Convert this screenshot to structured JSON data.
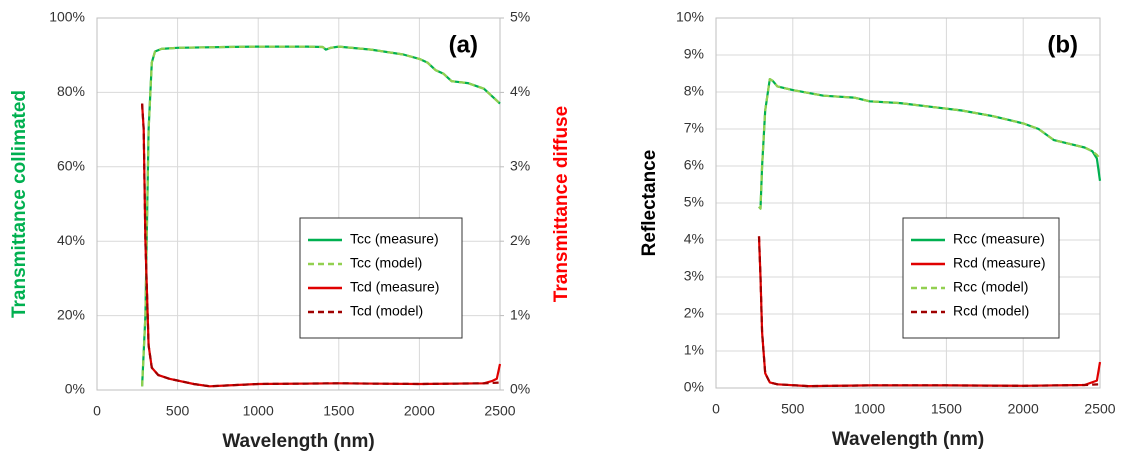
{
  "chart_data": [
    {
      "type": "line",
      "annotation": "(a)",
      "x_label": "Wavelength (nm)",
      "y_label": "Transmittance collimated",
      "y_label_color": "#00b050",
      "y2_label": "Transmittance diffuse",
      "y2_label_color": "#ff0000",
      "grid": true,
      "xlim": [
        0,
        2500
      ],
      "xticks": [
        0,
        500,
        1000,
        1500,
        2000,
        2500
      ],
      "ylim": [
        0,
        100
      ],
      "yticks": [
        {
          "value": 0,
          "label": "0%"
        },
        {
          "value": 20,
          "label": "20%"
        },
        {
          "value": 40,
          "label": "40%"
        },
        {
          "value": 60,
          "label": "60%"
        },
        {
          "value": 80,
          "label": "80%"
        },
        {
          "value": 100,
          "label": "100%"
        }
      ],
      "y2lim": [
        0,
        5
      ],
      "y2ticks": [
        {
          "value": 0,
          "label": "0%"
        },
        {
          "value": 1,
          "label": "1%"
        },
        {
          "value": 2,
          "label": "2%"
        },
        {
          "value": 3,
          "label": "3%"
        },
        {
          "value": 4,
          "label": "4%"
        },
        {
          "value": 5,
          "label": "5%"
        }
      ],
      "series": [
        {
          "name": "Tcc (measure)",
          "color": "#00b050",
          "dashed": false,
          "x": [
            280,
            300,
            320,
            340,
            360,
            400,
            500,
            800,
            1000,
            1300,
            1400,
            1420,
            1450,
            1500,
            1700,
            1900,
            2000,
            2050,
            2100,
            2150,
            2200,
            2300,
            2400,
            2500
          ],
          "values": [
            1,
            20,
            70,
            88,
            91,
            91.7,
            92,
            92.2,
            92.3,
            92.3,
            92.2,
            91.5,
            92,
            92.3,
            91.5,
            90.2,
            89,
            88,
            86,
            85,
            83,
            82.5,
            81,
            77
          ]
        },
        {
          "name": "Tcc (model)",
          "color": "#92d050",
          "dashed": true,
          "x": [
            280,
            300,
            320,
            340,
            360,
            400,
            500,
            800,
            1000,
            1300,
            1400,
            1420,
            1450,
            1500,
            1700,
            1900,
            2000,
            2050,
            2100,
            2150,
            2200,
            2300,
            2400,
            2500
          ],
          "values": [
            1,
            20,
            70,
            88,
            91,
            91.7,
            92,
            92.2,
            92.3,
            92.3,
            92.2,
            91.5,
            92,
            92.3,
            91.5,
            90.2,
            89,
            88,
            86,
            85,
            83,
            82.5,
            81,
            77
          ]
        },
        {
          "name": "Tcd (measure)",
          "color": "#e00000",
          "dashed": false,
          "axis": "y2",
          "x": [
            280,
            290,
            300,
            320,
            340,
            380,
            450,
            600,
            700,
            800,
            1000,
            1500,
            2000,
            2400,
            2450,
            2480,
            2500
          ],
          "values": [
            3.85,
            3.5,
            2,
            0.6,
            0.3,
            0.2,
            0.15,
            0.08,
            0.05,
            0.06,
            0.08,
            0.09,
            0.08,
            0.09,
            0.12,
            0.15,
            0.35
          ]
        },
        {
          "name": "Tcd (model)",
          "color": "#a00000",
          "dashed": true,
          "axis": "y2",
          "x": [
            280,
            290,
            300,
            320,
            340,
            380,
            450,
            600,
            700,
            800,
            1000,
            1500,
            2000,
            2400,
            2500
          ],
          "values": [
            3.85,
            3.5,
            2,
            0.6,
            0.3,
            0.2,
            0.15,
            0.08,
            0.05,
            0.06,
            0.08,
            0.09,
            0.08,
            0.09,
            0.1
          ]
        }
      ]
    },
    {
      "type": "line",
      "annotation": "(b)",
      "x_label": "Wavelength (nm)",
      "y_label": "Reflectance",
      "y_label_color": "#000000",
      "grid": true,
      "xlim": [
        0,
        2500
      ],
      "xticks": [
        0,
        500,
        1000,
        1500,
        2000,
        2500
      ],
      "ylim": [
        0,
        10
      ],
      "yticks": [
        {
          "value": 0,
          "label": "0%"
        },
        {
          "value": 1,
          "label": "1%"
        },
        {
          "value": 2,
          "label": "2%"
        },
        {
          "value": 3,
          "label": "3%"
        },
        {
          "value": 4,
          "label": "4%"
        },
        {
          "value": 5,
          "label": "5%"
        },
        {
          "value": 6,
          "label": "6%"
        },
        {
          "value": 7,
          "label": "7%"
        },
        {
          "value": 8,
          "label": "8%"
        },
        {
          "value": 9,
          "label": "9%"
        },
        {
          "value": 10,
          "label": "10%"
        }
      ],
      "series": [
        {
          "name": "Rcc (measure)",
          "color": "#00b050",
          "dashed": false,
          "x": [
            280,
            290,
            300,
            320,
            350,
            370,
            400,
            500,
            700,
            900,
            1000,
            1200,
            1400,
            1600,
            1800,
            2000,
            2100,
            2200,
            2300,
            2400,
            2450,
            2480,
            2500
          ],
          "values": [
            4.9,
            4.85,
            6,
            7.5,
            8.35,
            8.3,
            8.15,
            8.05,
            7.9,
            7.85,
            7.75,
            7.7,
            7.6,
            7.5,
            7.35,
            7.15,
            7.0,
            6.7,
            6.6,
            6.5,
            6.4,
            6.2,
            5.6
          ]
        },
        {
          "name": "Rcd (measure)",
          "color": "#e00000",
          "dashed": false,
          "x": [
            280,
            290,
            300,
            320,
            350,
            400,
            600,
            1000,
            1500,
            2000,
            2400,
            2480,
            2500
          ],
          "values": [
            4.1,
            3,
            1.5,
            0.4,
            0.15,
            0.1,
            0.05,
            0.07,
            0.07,
            0.06,
            0.08,
            0.2,
            0.7
          ]
        },
        {
          "name": "Rcc (model)",
          "color": "#92d050",
          "dashed": true,
          "x": [
            280,
            290,
            300,
            320,
            350,
            370,
            400,
            500,
            700,
            900,
            1000,
            1200,
            1400,
            1600,
            1800,
            2000,
            2100,
            2200,
            2300,
            2400,
            2450,
            2480,
            2500
          ],
          "values": [
            4.9,
            4.85,
            6,
            7.5,
            8.35,
            8.3,
            8.15,
            8.05,
            7.9,
            7.85,
            7.75,
            7.7,
            7.6,
            7.5,
            7.35,
            7.15,
            7.0,
            6.7,
            6.6,
            6.5,
            6.4,
            6.3,
            6.2
          ]
        },
        {
          "name": "Rcd (model)",
          "color": "#a00000",
          "dashed": true,
          "x": [
            280,
            290,
            300,
            320,
            350,
            400,
            600,
            1000,
            1500,
            2000,
            2400,
            2500
          ],
          "values": [
            4.1,
            3,
            1.5,
            0.4,
            0.15,
            0.1,
            0.05,
            0.07,
            0.07,
            0.06,
            0.08,
            0.1
          ]
        }
      ]
    }
  ]
}
